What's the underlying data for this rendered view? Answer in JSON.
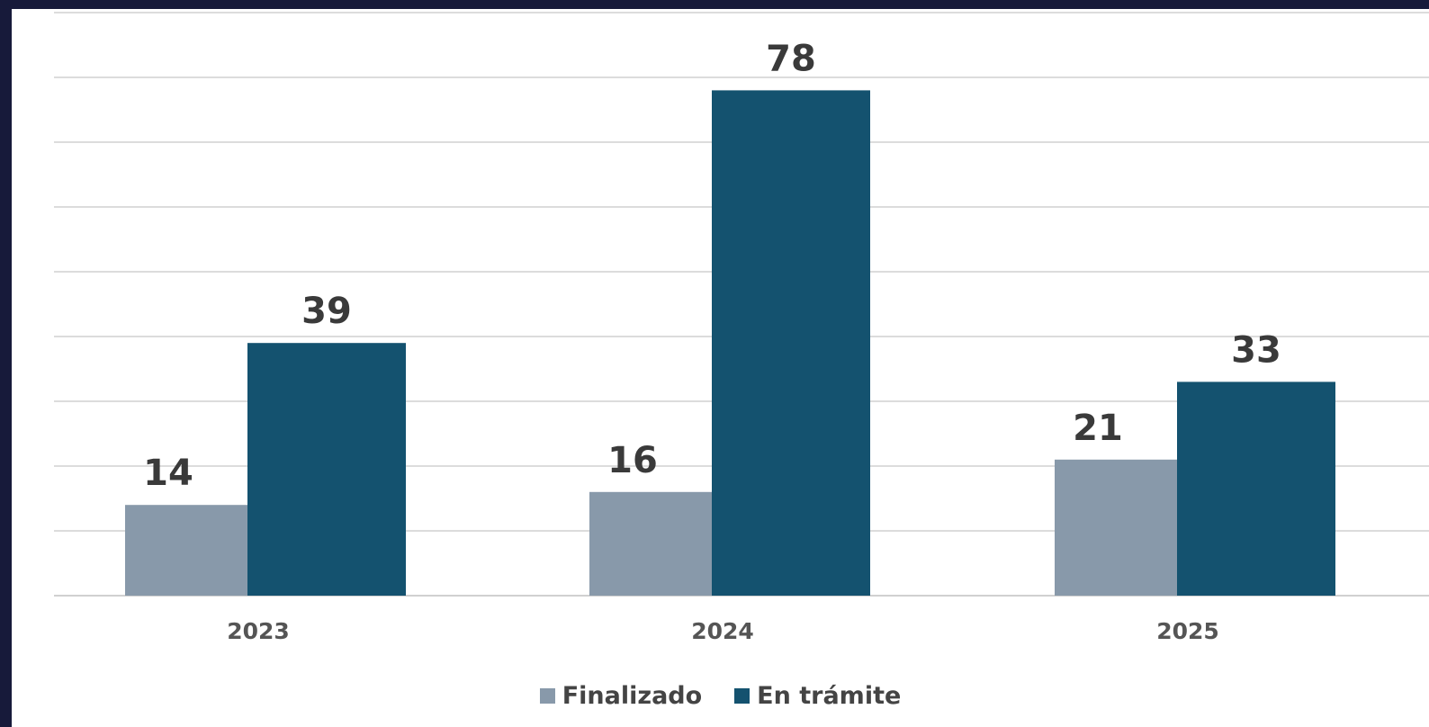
{
  "chart_data": {
    "type": "bar",
    "categories": [
      "2023",
      "2024",
      "2025"
    ],
    "series": [
      {
        "name": "Finalizado",
        "values": [
          14,
          16,
          21
        ],
        "color": "#8899aa"
      },
      {
        "name": "En trámite",
        "values": [
          39,
          78,
          33
        ],
        "color": "#14526f"
      }
    ],
    "ylim": [
      0,
      90
    ],
    "grid": true,
    "legend_position": "bottom-center",
    "data_labels": true,
    "title": "",
    "xlabel": "",
    "ylabel": ""
  },
  "colors": {
    "outer_background": "#171a3a",
    "plot_background": "#ffffff",
    "gridline": "#dcdcdc"
  }
}
